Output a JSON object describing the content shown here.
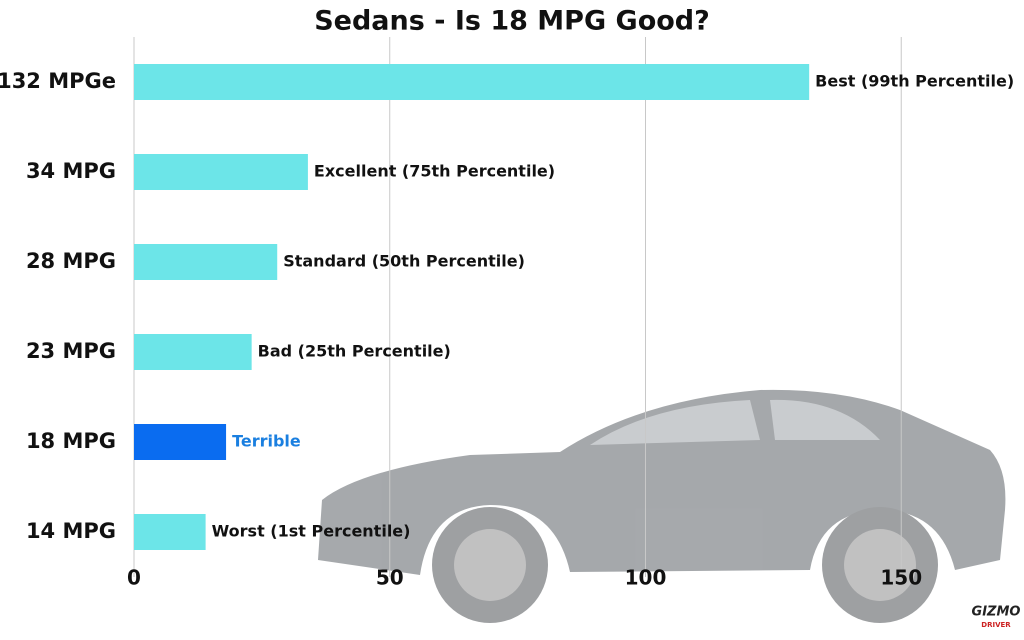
{
  "chart_data": {
    "type": "hbar",
    "title": "Sedans - Is 18 MPG Good?",
    "categories": [
      "132 MPGe",
      "34 MPG",
      "28 MPG",
      "23 MPG",
      "18 MPG",
      "14 MPG"
    ],
    "values": [
      132,
      34,
      28,
      23,
      18,
      14
    ],
    "bar_labels": [
      "Best (99th Percentile)",
      "Excellent (75th Percentile)",
      "Standard (50th Percentile)",
      "Bad (25th Percentile)",
      "Terrible",
      "Worst (1st Percentile)"
    ],
    "colors": [
      "#6ce5e8",
      "#6ce5e8",
      "#6ce5e8",
      "#6ce5e8",
      "#0a6cf0",
      "#6ce5e8"
    ],
    "label_colors": [
      "#111111",
      "#111111",
      "#111111",
      "#111111",
      "#1a7fe0",
      "#111111"
    ],
    "xlim": [
      0,
      174
    ],
    "xticks": [
      0,
      50,
      100,
      150
    ],
    "grid": true
  },
  "logo": {
    "text": "GIZMO",
    "subtext": "DRIVER"
  }
}
